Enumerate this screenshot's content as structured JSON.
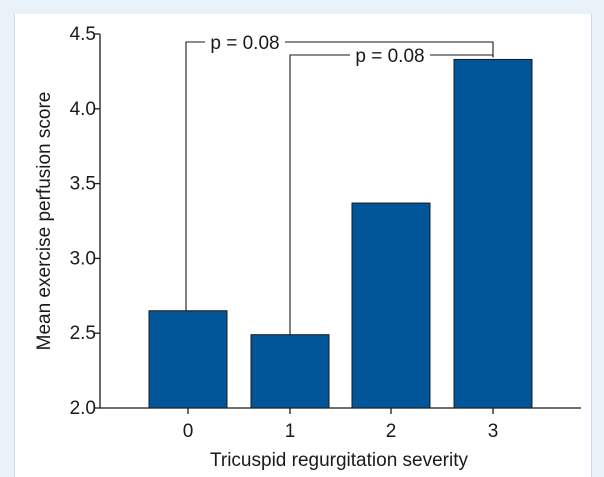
{
  "chart_data": {
    "type": "bar",
    "categories": [
      "0",
      "1",
      "2",
      "3"
    ],
    "values": [
      2.65,
      2.49,
      3.37,
      4.33
    ],
    "xlabel": "Tricuspid regurgitation severity",
    "ylabel": "Mean exercise perfusion score",
    "ylim": [
      2.0,
      4.5
    ],
    "yticks": [
      "2.0",
      "2.5",
      "3.0",
      "3.5",
      "4.0",
      "4.5"
    ],
    "grid": false,
    "bar_color": "#005699",
    "annotations": [
      {
        "label": "p = 0.08",
        "from_category": "0",
        "to_category": "3"
      },
      {
        "label": "p = 0.08",
        "from_category": "1",
        "to_category": "3"
      }
    ]
  }
}
